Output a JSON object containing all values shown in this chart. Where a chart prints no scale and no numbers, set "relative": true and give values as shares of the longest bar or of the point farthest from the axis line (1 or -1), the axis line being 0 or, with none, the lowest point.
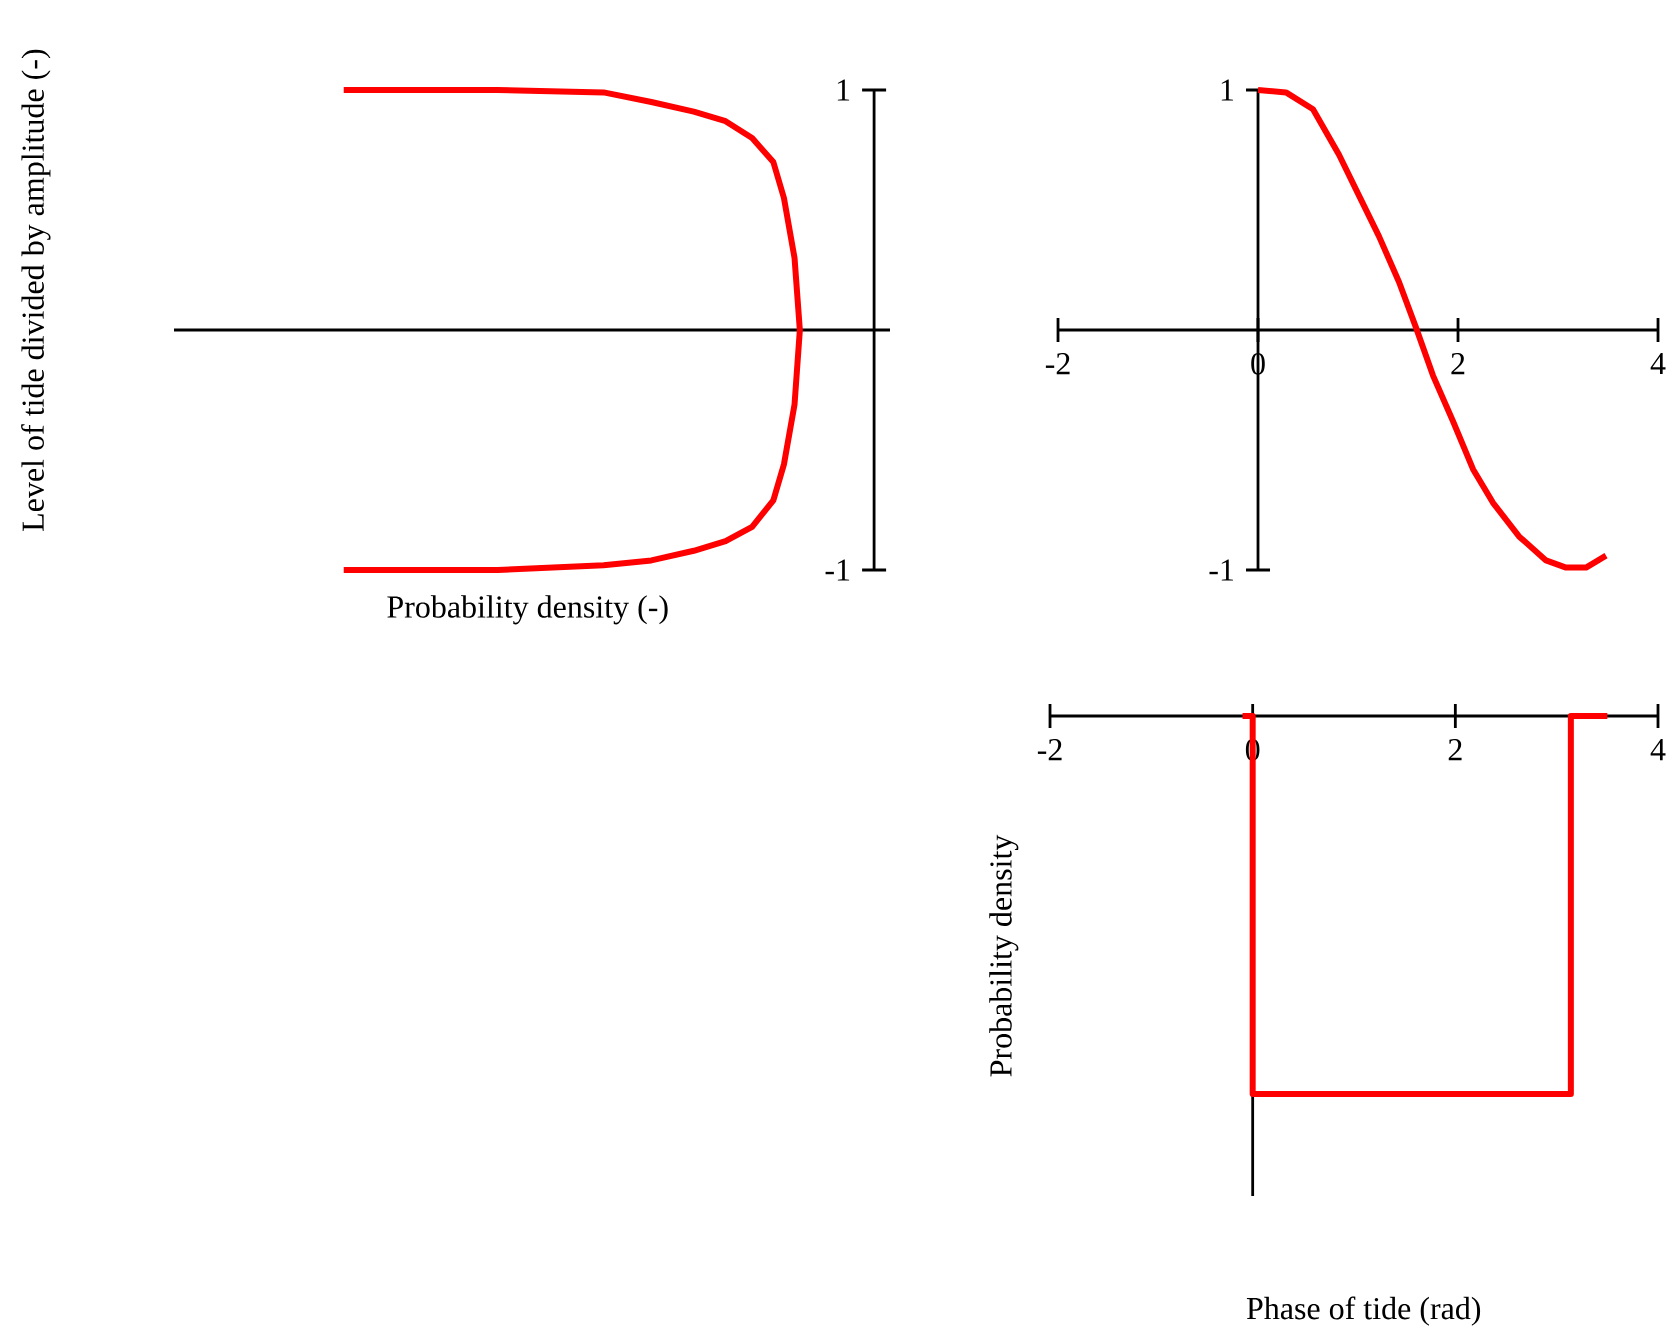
{
  "chart_data": [
    {
      "type": "line",
      "orientation": "horizontal",
      "relative": true,
      "ylabel": "Level of tide divided by amplitude (-)",
      "xlabel": "Probability density (-)",
      "ylim": [
        -1,
        1
      ],
      "yticks": [
        -1,
        1
      ],
      "color": "#ff0000",
      "x": [
        1,
        1,
        0.99,
        0.95,
        0.91,
        0.87,
        0.8,
        0.7,
        0.55,
        0.3,
        0,
        -0.31,
        -0.56,
        -0.71,
        -0.82,
        -0.88,
        -0.92,
        -0.96,
        -0.98,
        -1,
        -1
      ],
      "values": [
        -1,
        -0.71,
        -0.51,
        -0.42,
        -0.34,
        -0.28,
        -0.23,
        -0.19,
        -0.17,
        -0.15,
        -0.14,
        -0.15,
        -0.17,
        -0.19,
        -0.23,
        -0.28,
        -0.34,
        -0.42,
        -0.51,
        -0.71,
        -1
      ]
    },
    {
      "type": "line",
      "xlim": [
        -2,
        4
      ],
      "ylim": [
        -1,
        1
      ],
      "xticks": [
        -2,
        0,
        2,
        4
      ],
      "yticks": [
        -1,
        1
      ],
      "color": "#ff0000",
      "x": [
        0,
        0.28,
        0.55,
        0.81,
        1.01,
        1.21,
        1.41,
        1.58,
        1.75,
        1.95,
        2.15,
        2.35,
        2.61,
        2.88,
        3.08,
        3.28,
        3.48
      ],
      "values": [
        1,
        0.99,
        0.92,
        0.73,
        0.56,
        0.39,
        0.2,
        0.01,
        -0.19,
        -0.38,
        -0.58,
        -0.72,
        -0.86,
        -0.96,
        -0.99,
        -0.99,
        -0.94
      ]
    },
    {
      "type": "line",
      "relative": true,
      "ylabel": "Probability density",
      "xlabel": "Phase of tide (rad)",
      "xlim": [
        -2,
        4
      ],
      "xticks": [
        -2,
        0,
        2,
        4
      ],
      "color": "#ff0000",
      "x": [
        -0.1,
        0,
        0,
        3.14,
        3.14,
        3.5
      ],
      "values": [
        0,
        0,
        -1,
        -1,
        0,
        0
      ]
    }
  ]
}
